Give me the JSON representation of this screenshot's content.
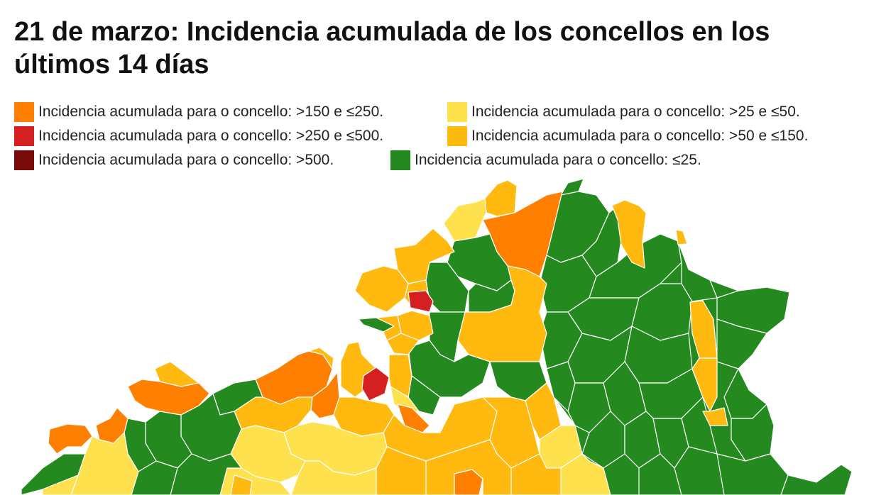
{
  "title": "21 de marzo: Incidencia acumulada de los concellos en los últimos 14 días",
  "legend": [
    {
      "label": "Incidencia acumulada para o concello: >150 e ≤250.",
      "color": "#ff7f00"
    },
    {
      "label": "Incidencia acumulada para o concello: >25 e ≤50.",
      "color": "#ffe14d"
    },
    {
      "label": "Incidencia acumulada para o concello: >250 e ≤500.",
      "color": "#d42020"
    },
    {
      "label": "Incidencia acumulada para o concello: >50 e ≤150.",
      "color": "#ffb90f"
    },
    {
      "label": "Incidencia acumulada para o concello: >500.",
      "color": "#7a0a0a"
    },
    {
      "label": "Incidencia acumulada para o concello: ≤25.",
      "color": "#248a1f"
    }
  ],
  "colors": {
    "over_150_to_250": "#ff7f00",
    "over_25_to_50": "#ffe14d",
    "over_250_to_500": "#d42020",
    "over_50_to_150": "#ffb90f",
    "over_500": "#7a0a0a",
    "up_to_25": "#248a1f",
    "border": "#ffffff"
  }
}
